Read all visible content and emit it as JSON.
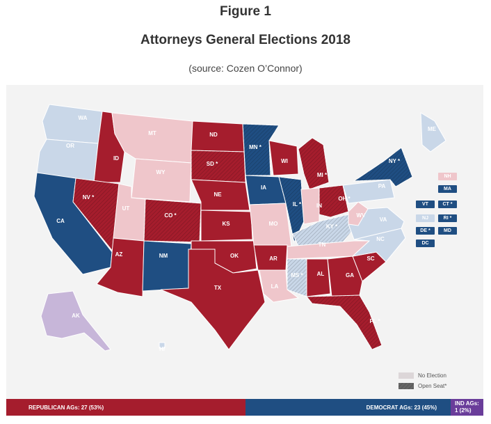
{
  "figure": {
    "number_label": "Figure 1",
    "title": "Attorneys General Elections 2018",
    "source": "(source: Cozen O’Connor)"
  },
  "colors": {
    "republican": "#a51d2d",
    "democrat": "#1f4e82",
    "no_election_rep": "#efc6cb",
    "no_election_dem": "#c9d7e8",
    "independent": "#c7b6d9",
    "background": "#f3f3f3"
  },
  "map": {
    "states": [
      {
        "abbr": "WA",
        "party": "dem",
        "election": false,
        "open_seat": false
      },
      {
        "abbr": "OR",
        "party": "dem",
        "election": false,
        "open_seat": false
      },
      {
        "abbr": "CA",
        "party": "dem",
        "election": true,
        "open_seat": false
      },
      {
        "abbr": "ID",
        "party": "rep",
        "election": true,
        "open_seat": false
      },
      {
        "abbr": "NV *",
        "party": "rep",
        "election": true,
        "open_seat": true
      },
      {
        "abbr": "MT",
        "party": "rep",
        "election": false,
        "open_seat": false
      },
      {
        "abbr": "WY",
        "party": "rep",
        "election": false,
        "open_seat": false
      },
      {
        "abbr": "UT",
        "party": "rep",
        "election": false,
        "open_seat": false
      },
      {
        "abbr": "AZ",
        "party": "rep",
        "election": true,
        "open_seat": false
      },
      {
        "abbr": "CO *",
        "party": "rep",
        "election": true,
        "open_seat": true
      },
      {
        "abbr": "NM",
        "party": "dem",
        "election": true,
        "open_seat": false
      },
      {
        "abbr": "ND",
        "party": "rep",
        "election": true,
        "open_seat": false
      },
      {
        "abbr": "SD *",
        "party": "rep",
        "election": true,
        "open_seat": true
      },
      {
        "abbr": "NE",
        "party": "rep",
        "election": true,
        "open_seat": false
      },
      {
        "abbr": "KS",
        "party": "rep",
        "election": true,
        "open_seat": false
      },
      {
        "abbr": "OK",
        "party": "rep",
        "election": true,
        "open_seat": false
      },
      {
        "abbr": "TX",
        "party": "rep",
        "election": true,
        "open_seat": false
      },
      {
        "abbr": "MN *",
        "party": "dem",
        "election": true,
        "open_seat": true
      },
      {
        "abbr": "IA",
        "party": "dem",
        "election": true,
        "open_seat": false
      },
      {
        "abbr": "MO",
        "party": "rep",
        "election": false,
        "open_seat": false
      },
      {
        "abbr": "AR",
        "party": "rep",
        "election": true,
        "open_seat": false
      },
      {
        "abbr": "LA",
        "party": "rep",
        "election": false,
        "open_seat": false
      },
      {
        "abbr": "WI",
        "party": "rep",
        "election": true,
        "open_seat": false
      },
      {
        "abbr": "IL *",
        "party": "dem",
        "election": true,
        "open_seat": true
      },
      {
        "abbr": "MI *",
        "party": "rep",
        "election": true,
        "open_seat": true
      },
      {
        "abbr": "IN",
        "party": "rep",
        "election": false,
        "open_seat": false
      },
      {
        "abbr": "OH *",
        "party": "rep",
        "election": true,
        "open_seat": true
      },
      {
        "abbr": "KY *",
        "party": "dem",
        "election": false,
        "open_seat": true
      },
      {
        "abbr": "TN",
        "party": "rep",
        "election": false,
        "open_seat": false
      },
      {
        "abbr": "MS *",
        "party": "dem",
        "election": false,
        "open_seat": true
      },
      {
        "abbr": "AL",
        "party": "rep",
        "election": true,
        "open_seat": false
      },
      {
        "abbr": "GA",
        "party": "rep",
        "election": true,
        "open_seat": false
      },
      {
        "abbr": "FL *",
        "party": "rep",
        "election": true,
        "open_seat": true
      },
      {
        "abbr": "SC",
        "party": "rep",
        "election": true,
        "open_seat": false
      },
      {
        "abbr": "NC",
        "party": "dem",
        "election": false,
        "open_seat": false
      },
      {
        "abbr": "VA",
        "party": "dem",
        "election": false,
        "open_seat": false
      },
      {
        "abbr": "WV",
        "party": "rep",
        "election": false,
        "open_seat": false
      },
      {
        "abbr": "PA",
        "party": "dem",
        "election": false,
        "open_seat": false
      },
      {
        "abbr": "NY *",
        "party": "dem",
        "election": true,
        "open_seat": true
      },
      {
        "abbr": "ME",
        "party": "dem",
        "election": false,
        "open_seat": false
      },
      {
        "abbr": "AK",
        "party": "ind",
        "election": false,
        "open_seat": false
      },
      {
        "abbr": "HI",
        "party": "dem",
        "election": false,
        "open_seat": false
      }
    ],
    "northeast_boxes": [
      {
        "abbr": "NH",
        "party": "rep",
        "election": false
      },
      {
        "abbr": "MA",
        "party": "dem",
        "election": true
      },
      {
        "abbr": "VT",
        "party": "dem",
        "election": true
      },
      {
        "abbr": "CT *",
        "party": "dem",
        "election": true
      },
      {
        "abbr": "NJ",
        "party": "dem",
        "election": false
      },
      {
        "abbr": "RI *",
        "party": "dem",
        "election": true
      },
      {
        "abbr": "DE *",
        "party": "dem",
        "election": true
      },
      {
        "abbr": "MD",
        "party": "dem",
        "election": true
      },
      {
        "abbr": "DC",
        "party": "dem",
        "election": true
      }
    ]
  },
  "legend": {
    "no_election": "No Election",
    "open_seat": "Open Seat*"
  },
  "totals": {
    "republican_label": "REPUBLICAN AGs: 27 (53%)",
    "democrat_label": "DEMOCRAT AGs: 23 (45%)",
    "independent_label": "IND AGs:",
    "independent_value": "1 (2%)"
  }
}
